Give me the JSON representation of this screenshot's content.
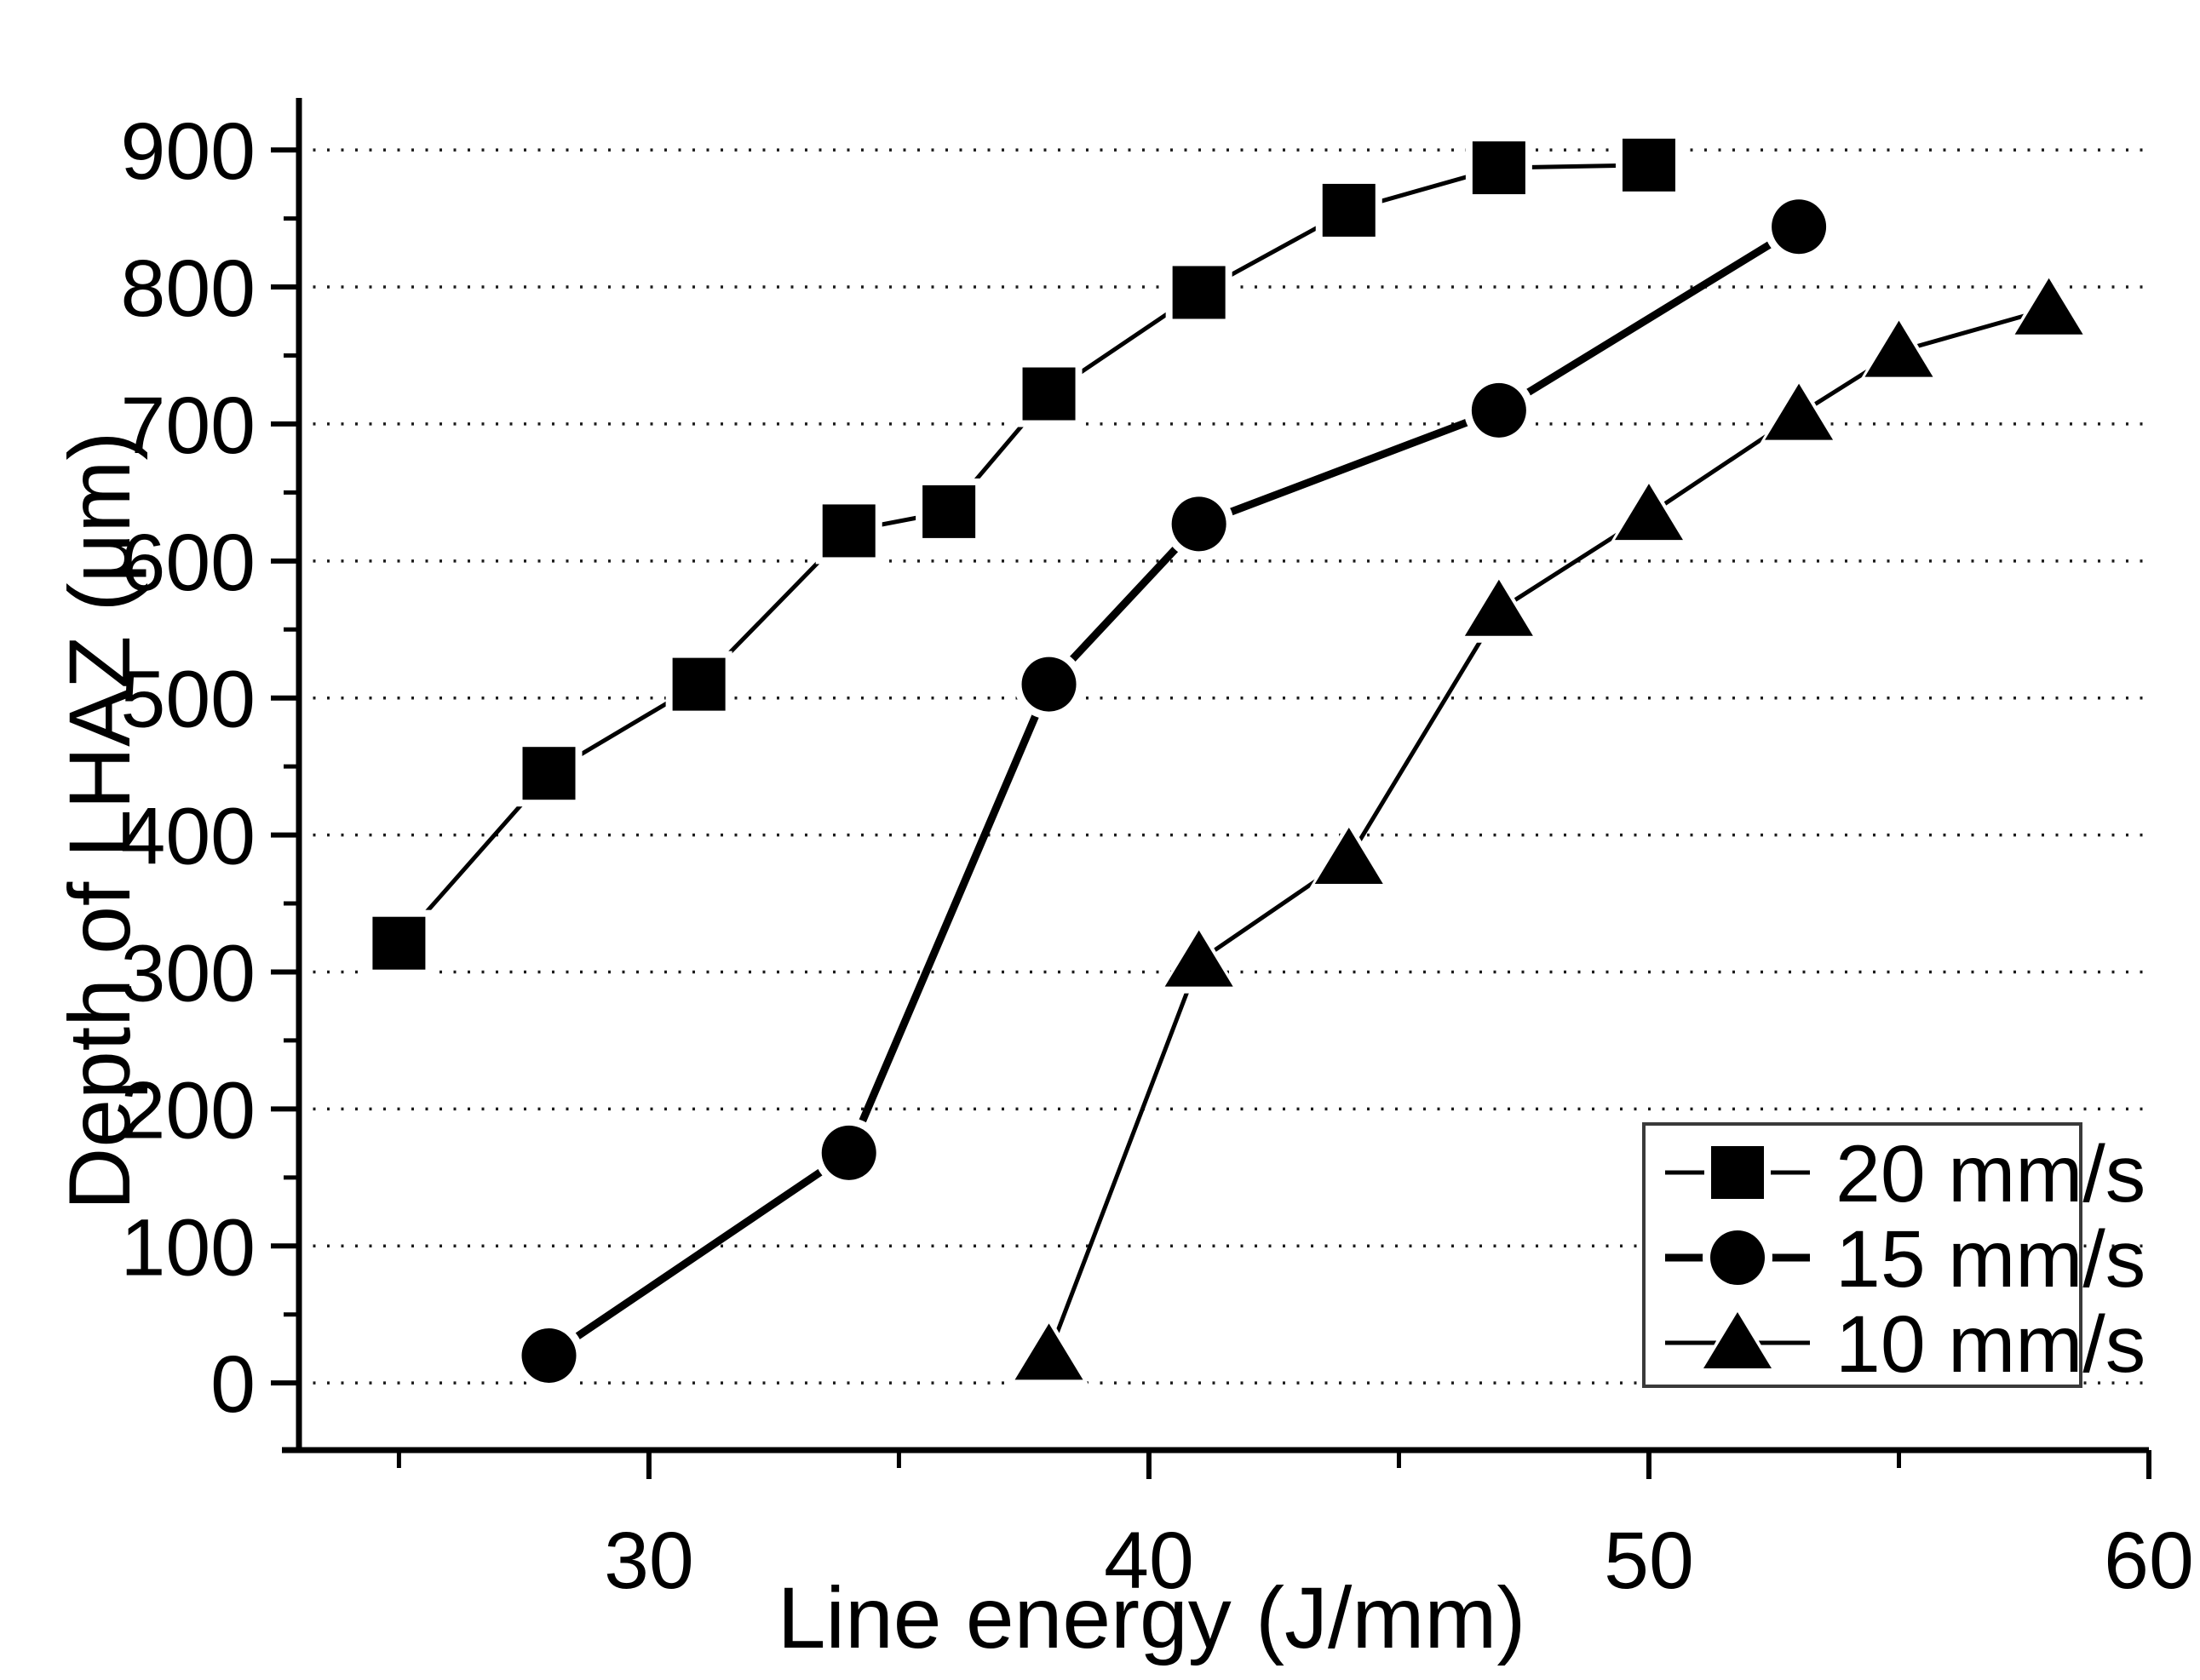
{
  "page": {
    "background": "#ffffff",
    "foreground": "#000000"
  },
  "chart_data": {
    "type": "line",
    "title": "",
    "xlabel": "Line energy (J/mm)",
    "ylabel": "Depth of LHAZ (μm)",
    "xlim": [
      23.0,
      60.0
    ],
    "ylim": [
      -49,
      938
    ],
    "x_major_ticks": [
      30,
      40,
      50,
      60
    ],
    "x_minor_ticks": [
      25,
      35,
      45,
      55
    ],
    "y_major_ticks": [
      0,
      100,
      200,
      300,
      400,
      500,
      600,
      700,
      800,
      900
    ],
    "y_minor_ticks": [
      50,
      150,
      250,
      350,
      450,
      550,
      650,
      750,
      850
    ],
    "grid": "horizontal dotted lines at every 100",
    "legend_position": "lower-right",
    "legend_entries": [
      "20 mm/s",
      "15 mm/s",
      "10 mm/s"
    ],
    "series": [
      {
        "name": "20 mm/s",
        "marker": "square",
        "line_width": 5,
        "x": [
          25,
          28,
          31,
          34,
          36,
          38,
          41,
          44,
          47,
          50
        ],
        "y": [
          321,
          445,
          510,
          622,
          636,
          722,
          796,
          856,
          887,
          889
        ]
      },
      {
        "name": "15 mm/s",
        "marker": "circle",
        "line_width": 9,
        "x": [
          28,
          34,
          38,
          41,
          47,
          53
        ],
        "y": [
          20,
          168,
          510,
          627,
          710,
          844
        ]
      },
      {
        "name": "10 mm/s",
        "marker": "triangle",
        "line_width": 5,
        "x": [
          38,
          41,
          44,
          47,
          50,
          53,
          55,
          58
        ],
        "y": [
          21,
          308,
          383,
          564,
          634,
          707,
          753,
          784
        ]
      }
    ],
    "colors": {
      "axis": "#000000",
      "grid_dots": "#1c1c1c",
      "marker_fill": "#000000",
      "legend_border": "#3a3a3a"
    }
  }
}
